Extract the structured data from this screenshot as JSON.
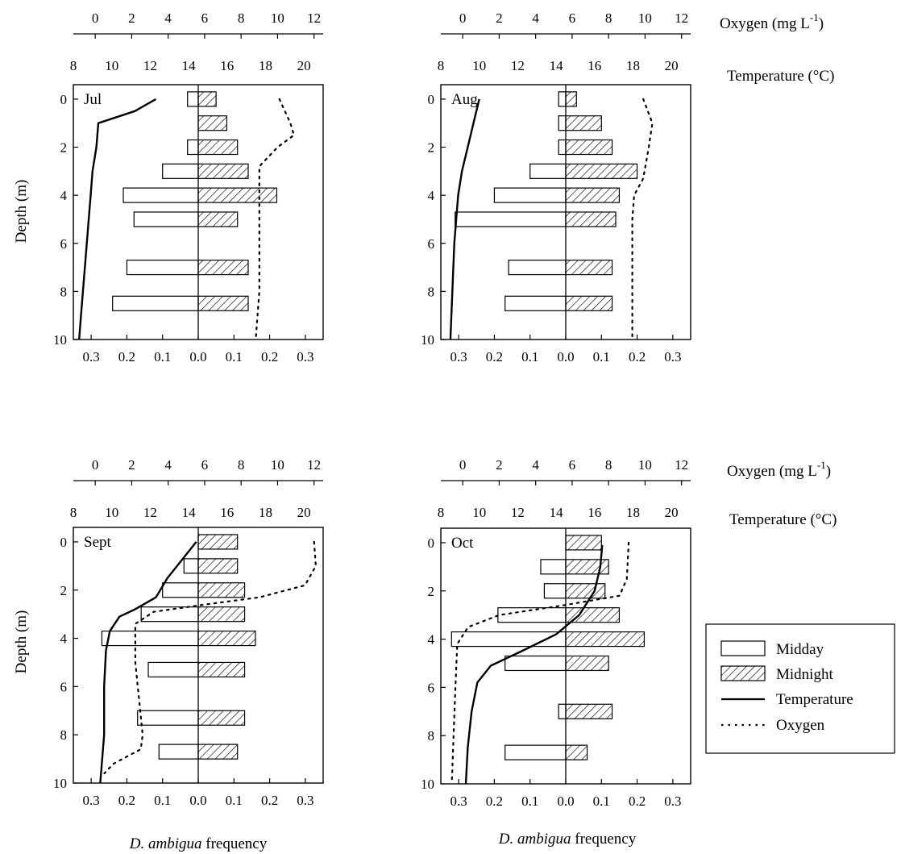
{
  "figure": {
    "oxygen_axis_label": "Oxygen (mg L",
    "oxygen_axis_label_sup": "-1",
    "oxygen_axis_label_close": ")",
    "temperature_axis_label": "Temperature (°C)",
    "y_axis_label": "Depth (m)",
    "x_axis_label_italic": "D. ambigua",
    "x_axis_label_rest": " frequency"
  },
  "legend": {
    "items": [
      {
        "key": "midday",
        "label": "Midday",
        "style": "open-bar"
      },
      {
        "key": "midnight",
        "label": "Midnight",
        "style": "hatched-bar"
      },
      {
        "key": "temperature",
        "label": "Temperature",
        "style": "solid-line"
      },
      {
        "key": "oxygen",
        "label": "Oxygen",
        "style": "dotted-line"
      }
    ]
  },
  "colors": {
    "ink": "#000000",
    "background": "#ffffff"
  },
  "chart_data": [
    {
      "type": "bar",
      "panel": "Jul",
      "y_axis": {
        "label": "Depth (m)",
        "range": [
          10,
          -0.6
        ],
        "ticks": [
          0,
          2,
          4,
          6,
          8,
          10
        ]
      },
      "freq_axis": {
        "range": [
          -0.35,
          0.35
        ],
        "ticks": [
          -0.3,
          -0.2,
          -0.1,
          0.0,
          0.1,
          0.2,
          0.3
        ],
        "tick_labels": [
          "0.3",
          "0.2",
          "0.1",
          "0.0",
          "0.1",
          "0.2",
          "0.3"
        ]
      },
      "temp_axis": {
        "label": "Temperature (°C)",
        "range": [
          8,
          21
        ],
        "ticks": [
          8,
          10,
          12,
          14,
          16,
          18,
          20
        ]
      },
      "oxygen_axis": {
        "label": "Oxygen (mg L-1)",
        "range": [
          -1.2,
          12.5
        ],
        "ticks": [
          0,
          2,
          4,
          6,
          8,
          10,
          12
        ]
      },
      "depths": [
        0,
        1,
        2,
        3,
        4,
        5,
        7,
        8.5
      ],
      "midday": [
        0.03,
        0.0,
        0.03,
        0.1,
        0.21,
        0.18,
        0.2,
        0.24
      ],
      "midnight": [
        0.05,
        0.08,
        0.11,
        0.14,
        0.22,
        0.11,
        0.14,
        0.14
      ],
      "temperature": [
        [
          12.3,
          0
        ],
        [
          11.2,
          0.5
        ],
        [
          9.3,
          1
        ],
        [
          9.2,
          2
        ],
        [
          9.0,
          3
        ],
        [
          8.9,
          4
        ],
        [
          8.8,
          5
        ],
        [
          8.7,
          6
        ],
        [
          8.6,
          7
        ],
        [
          8.5,
          8
        ],
        [
          8.4,
          9
        ],
        [
          8.3,
          10
        ]
      ],
      "oxygen": [
        [
          10.1,
          0
        ],
        [
          10.7,
          1
        ],
        [
          10.9,
          1.5
        ],
        [
          10.0,
          2
        ],
        [
          9.0,
          2.8
        ],
        [
          9.0,
          4
        ],
        [
          9.0,
          6
        ],
        [
          9.0,
          8
        ],
        [
          8.8,
          10
        ]
      ]
    },
    {
      "type": "bar",
      "panel": "Aug",
      "y_axis": {
        "label": "Depth (m)",
        "range": [
          10,
          -0.6
        ],
        "ticks": [
          0,
          2,
          4,
          6,
          8,
          10
        ]
      },
      "freq_axis": {
        "range": [
          -0.35,
          0.35
        ],
        "ticks": [
          -0.3,
          -0.2,
          -0.1,
          0.0,
          0.1,
          0.2,
          0.3
        ],
        "tick_labels": [
          "0.3",
          "0.2",
          "0.1",
          "0.0",
          "0.1",
          "0.2",
          "0.3"
        ]
      },
      "temp_axis": {
        "label": "Temperature (°C)",
        "range": [
          8,
          21
        ],
        "ticks": [
          8,
          10,
          12,
          14,
          16,
          18,
          20
        ]
      },
      "oxygen_axis": {
        "label": "Oxygen (mg L-1)",
        "range": [
          -1.2,
          12.5
        ],
        "ticks": [
          0,
          2,
          4,
          6,
          8,
          10,
          12
        ]
      },
      "depths": [
        0,
        1,
        2,
        3,
        4,
        5,
        7,
        8.5
      ],
      "midday": [
        0.02,
        0.02,
        0.02,
        0.1,
        0.2,
        0.31,
        0.16,
        0.17
      ],
      "midnight": [
        0.03,
        0.1,
        0.13,
        0.2,
        0.15,
        0.14,
        0.13,
        0.13
      ],
      "temperature": [
        [
          10.0,
          0
        ],
        [
          9.7,
          1
        ],
        [
          9.4,
          2
        ],
        [
          9.1,
          3
        ],
        [
          8.9,
          4
        ],
        [
          8.8,
          5
        ],
        [
          8.7,
          6
        ],
        [
          8.6,
          8
        ],
        [
          8.5,
          10
        ]
      ],
      "oxygen": [
        [
          9.9,
          0
        ],
        [
          10.4,
          1
        ],
        [
          10.2,
          2
        ],
        [
          9.9,
          3.3
        ],
        [
          9.4,
          4
        ],
        [
          9.3,
          5
        ],
        [
          9.3,
          7
        ],
        [
          9.3,
          10
        ]
      ]
    },
    {
      "type": "bar",
      "panel": "Sept",
      "y_axis": {
        "label": "Depth (m)",
        "range": [
          10,
          -0.6
        ],
        "ticks": [
          0,
          2,
          4,
          6,
          8,
          10
        ]
      },
      "freq_axis": {
        "range": [
          -0.35,
          0.35
        ],
        "ticks": [
          -0.3,
          -0.2,
          -0.1,
          0.0,
          0.1,
          0.2,
          0.3
        ],
        "tick_labels": [
          "0.3",
          "0.2",
          "0.1",
          "0.0",
          "0.1",
          "0.2",
          "0.3"
        ]
      },
      "temp_axis": {
        "label": "Temperature (°C)",
        "range": [
          8,
          21
        ],
        "ticks": [
          8,
          10,
          12,
          14,
          16,
          18,
          20
        ]
      },
      "oxygen_axis": {
        "label": "Oxygen (mg L-1)",
        "range": [
          -1.2,
          12.5
        ],
        "ticks": [
          0,
          2,
          4,
          6,
          8,
          10,
          12
        ]
      },
      "depths": [
        0,
        1,
        2,
        3,
        4,
        5.3,
        7.3,
        8.7
      ],
      "midday": [
        0.0,
        0.04,
        0.1,
        0.16,
        0.27,
        0.14,
        0.17,
        0.11
      ],
      "midnight": [
        0.11,
        0.11,
        0.13,
        0.13,
        0.16,
        0.13,
        0.13,
        0.11
      ],
      "temperature": [
        [
          14.4,
          0
        ],
        [
          13.6,
          0.8
        ],
        [
          12.9,
          1.5
        ],
        [
          12.3,
          2.3
        ],
        [
          11.2,
          2.8
        ],
        [
          10.4,
          3.1
        ],
        [
          9.9,
          3.7
        ],
        [
          9.7,
          4.5
        ],
        [
          9.6,
          6
        ],
        [
          9.6,
          8
        ],
        [
          9.4,
          10
        ]
      ],
      "oxygen": [
        [
          12.0,
          0
        ],
        [
          12.1,
          1
        ],
        [
          11.5,
          1.8
        ],
        [
          9.0,
          2.3
        ],
        [
          6.0,
          2.6
        ],
        [
          3.2,
          2.9
        ],
        [
          2.2,
          3.4
        ],
        [
          2.2,
          5
        ],
        [
          2.4,
          6.5
        ],
        [
          2.6,
          8
        ],
        [
          2.5,
          8.6
        ],
        [
          1.0,
          9.2
        ],
        [
          0.5,
          9.6
        ]
      ]
    },
    {
      "type": "bar",
      "panel": "Oct",
      "y_axis": {
        "label": "Depth (m)",
        "range": [
          10,
          -0.6
        ],
        "ticks": [
          0,
          2,
          4,
          6,
          8,
          10
        ]
      },
      "freq_axis": {
        "range": [
          -0.35,
          0.35
        ],
        "ticks": [
          -0.3,
          -0.2,
          -0.1,
          0.0,
          0.1,
          0.2,
          0.3
        ],
        "tick_labels": [
          "0.3",
          "0.2",
          "0.1",
          "0.0",
          "0.1",
          "0.2",
          "0.3"
        ]
      },
      "temp_axis": {
        "label": "Temperature (°C)",
        "range": [
          8,
          21
        ],
        "ticks": [
          8,
          10,
          12,
          14,
          16,
          18,
          20
        ]
      },
      "oxygen_axis": {
        "label": "Oxygen (mg L-1)",
        "range": [
          -1.2,
          12.5
        ],
        "ticks": [
          0,
          2,
          4,
          6,
          8,
          10,
          12
        ]
      },
      "depths": [
        0,
        1,
        2,
        3,
        4,
        5,
        7,
        8.7
      ],
      "midday": [
        0.0,
        0.07,
        0.06,
        0.19,
        0.32,
        0.17,
        0.02,
        0.17
      ],
      "midnight": [
        0.1,
        0.12,
        0.11,
        0.15,
        0.22,
        0.12,
        0.13,
        0.06
      ],
      "temperature": [
        [
          16.4,
          0.1
        ],
        [
          16.3,
          1
        ],
        [
          16.0,
          2
        ],
        [
          15.2,
          3
        ],
        [
          14.0,
          3.8
        ],
        [
          12.2,
          4.5
        ],
        [
          10.6,
          5.1
        ],
        [
          9.9,
          5.8
        ],
        [
          9.6,
          7
        ],
        [
          9.4,
          8.5
        ],
        [
          9.3,
          10
        ]
      ],
      "oxygen": [
        [
          9.1,
          0
        ],
        [
          9.0,
          1.5
        ],
        [
          8.6,
          2.2
        ],
        [
          5.5,
          2.6
        ],
        [
          2.0,
          3.0
        ],
        [
          0.3,
          3.5
        ],
        [
          -0.3,
          4.2
        ],
        [
          -0.4,
          6
        ],
        [
          -0.5,
          8
        ],
        [
          -0.6,
          10
        ]
      ]
    }
  ]
}
